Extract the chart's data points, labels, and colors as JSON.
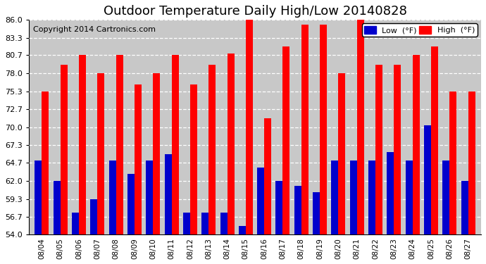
{
  "title": "Outdoor Temperature Daily High/Low 20140828",
  "copyright": "Copyright 2014 Cartronics.com",
  "legend_low_label": "Low  (°F)",
  "legend_high_label": "High  (°F)",
  "dates": [
    "08/04",
    "08/05",
    "08/06",
    "08/07",
    "08/08",
    "08/09",
    "08/10",
    "08/11",
    "08/12",
    "08/13",
    "08/14",
    "08/15",
    "08/16",
    "08/17",
    "08/18",
    "08/19",
    "08/20",
    "08/21",
    "08/22",
    "08/23",
    "08/24",
    "08/25",
    "08/26",
    "08/27"
  ],
  "highs": [
    75.3,
    79.3,
    80.7,
    78.0,
    80.7,
    76.3,
    78.0,
    80.7,
    76.3,
    79.3,
    81.0,
    86.0,
    71.3,
    82.0,
    85.3,
    85.3,
    78.0,
    86.0,
    79.3,
    79.3,
    80.7,
    82.0,
    75.3,
    75.3
  ],
  "lows": [
    65.0,
    62.0,
    57.3,
    59.3,
    65.0,
    63.0,
    65.0,
    66.0,
    57.3,
    57.3,
    57.3,
    55.3,
    64.0,
    62.0,
    61.3,
    60.3,
    65.0,
    65.0,
    65.0,
    66.3,
    65.0,
    70.3,
    65.0,
    62.0
  ],
  "ymin": 54.0,
  "ymax": 86.0,
  "yticks": [
    54.0,
    56.7,
    59.3,
    62.0,
    64.7,
    67.3,
    70.0,
    72.7,
    75.3,
    78.0,
    80.7,
    83.3,
    86.0
  ],
  "high_color": "#ff0000",
  "low_color": "#0000cc",
  "bg_color": "#ffffff",
  "grid_color": "#ffffff",
  "plot_bg_color": "#c8c8c8",
  "title_fontsize": 13,
  "copyright_fontsize": 8,
  "bar_width": 0.38
}
